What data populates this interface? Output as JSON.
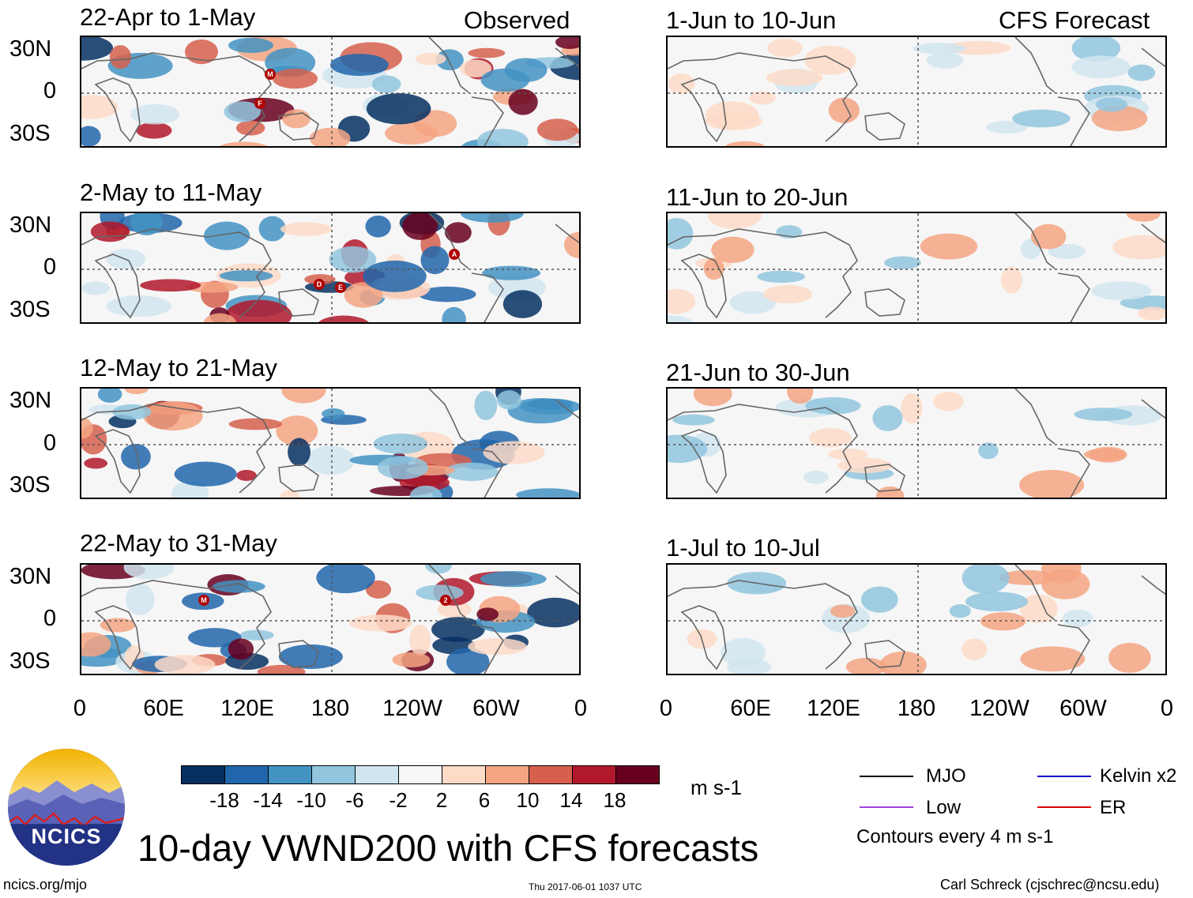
{
  "header": {
    "observed_label": "Observed",
    "forecast_label": "CFS Forecast"
  },
  "panels": {
    "observed": [
      "22-Apr to 1-May",
      "2-May to 11-May",
      "12-May to 21-May",
      "22-May to 31-May"
    ],
    "forecast": [
      "1-Jun to 10-Jun",
      "11-Jun to 20-Jun",
      "21-Jun to 30-Jun",
      "1-Jul to 10-Jul"
    ]
  },
  "axes": {
    "lat_labels": [
      "30N",
      "0",
      "30S"
    ],
    "lon_labels": [
      "0",
      "60E",
      "120E",
      "180",
      "120W",
      "60W",
      "0"
    ]
  },
  "colorbar": {
    "labels": [
      "-18",
      "-14",
      "-10",
      "-6",
      "-2",
      "2",
      "6",
      "10",
      "14",
      "18"
    ],
    "colors": [
      "#053061",
      "#2166ac",
      "#4393c3",
      "#92c5de",
      "#d1e5f0",
      "#f7f7f7",
      "#fddbc7",
      "#f4a582",
      "#d6604d",
      "#b2182b",
      "#67001f"
    ],
    "units": "m s-1"
  },
  "legend": {
    "items": [
      {
        "label": "MJO",
        "color": "#000000"
      },
      {
        "label": "Kelvin x2",
        "color": "#0000cc"
      },
      {
        "label": "Low",
        "color": "#a040e0"
      },
      {
        "label": "ER",
        "color": "#dd0000"
      }
    ],
    "contours_note": "Contours every 4 m s-1"
  },
  "title": "10-day VWND200 with CFS forecasts",
  "logo": {
    "text": "NCICS"
  },
  "footer": {
    "url": "ncics.org/mjo",
    "timestamp": "Thu 2017-06-01 1037 UTC",
    "author": "Carl Schreck (cjschrec@ncsu.edu)"
  },
  "storm_markers": {
    "panel1": [
      "M",
      "F"
    ],
    "panel2": [
      "D",
      "E",
      "A"
    ],
    "panel4": [
      "M",
      "2"
    ]
  }
}
